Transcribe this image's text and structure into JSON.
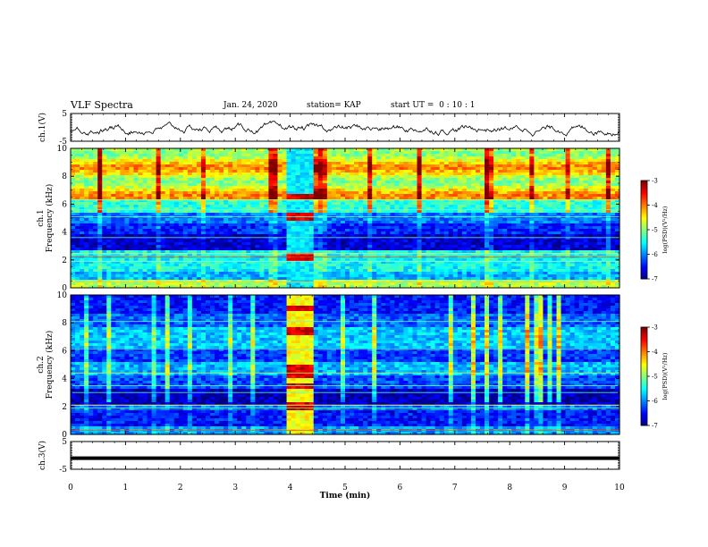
{
  "header": {
    "title": "VLF Spectra",
    "date": "Jan. 24, 2020",
    "station": "station= KAP",
    "start": "start UT =  0 : 10 : 1"
  },
  "colorbar": {
    "label": "log(PSD)(V²/Hz)",
    "ticks": [
      "-3",
      "-4",
      "-5",
      "-6",
      "-7"
    ],
    "colors": [
      "#000080",
      "#0000ff",
      "#0080ff",
      "#00ffff",
      "#80ff80",
      "#ffff00",
      "#ff8000",
      "#ff0000",
      "#800000"
    ]
  },
  "chart_data": [
    {
      "type": "line",
      "panel": "ch.1 waveform",
      "ylabel": "ch.1(V)",
      "ylim": [
        -5,
        5
      ],
      "yticks": [
        "5",
        "-5"
      ],
      "xlim": [
        0,
        10
      ],
      "series": [
        {
          "values_shape": "noisy waveform, roughly -3 to +2 V"
        }
      ]
    },
    {
      "type": "heatmap",
      "panel": "ch.1 spectrogram",
      "ylabel": "ch.1 Frequency (kHz)",
      "ylim": [
        0,
        10
      ],
      "yticks": [
        "0",
        "2",
        "4",
        "6",
        "8",
        "10"
      ],
      "xlim": [
        0,
        10
      ],
      "clim": [
        -7,
        -3
      ],
      "feature_interval_min": [
        3.9,
        4.45
      ]
    },
    {
      "type": "heatmap",
      "panel": "ch.2 spectrogram",
      "ylabel": "ch.2 Frequency (kHz)",
      "ylim": [
        0,
        10
      ],
      "yticks": [
        "0",
        "2",
        "4",
        "6",
        "8",
        "10"
      ],
      "xlim": [
        0,
        10
      ],
      "clim": [
        -7,
        -3
      ],
      "feature_interval_min": [
        3.9,
        4.45
      ]
    },
    {
      "type": "line",
      "panel": "ch.3 waveform",
      "ylabel": "ch.3(V)",
      "ylim": [
        -5,
        5
      ],
      "yticks": [
        "5",
        "-5"
      ],
      "xlim": [
        0,
        10
      ],
      "series": [
        {
          "values_shape": "flat near -1 V"
        }
      ]
    }
  ],
  "xaxis": {
    "label": "Time (min)",
    "ticks": [
      "0",
      "1",
      "2",
      "3",
      "4",
      "5",
      "6",
      "7",
      "8",
      "9",
      "10"
    ]
  }
}
